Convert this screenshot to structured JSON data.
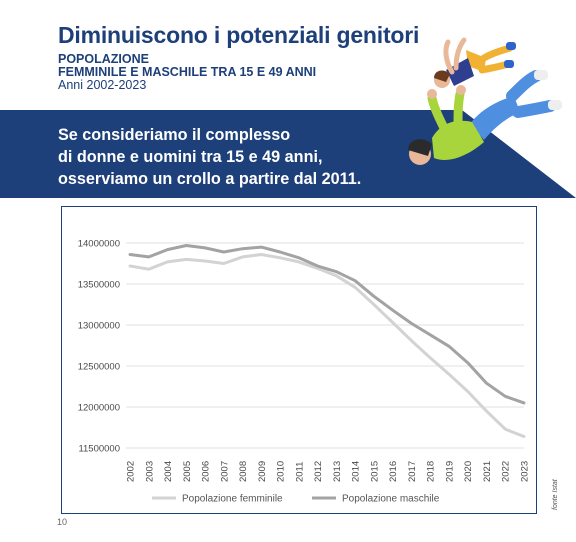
{
  "header": {
    "title": "Diminuiscono i potenziali genitori",
    "subtitle_line1": "POPOLAZIONE",
    "subtitle_line2": "FEMMINILE E MASCHILE TRA 15 E 49 ANNI",
    "years": "Anni 2002-2023"
  },
  "banner": {
    "lines": [
      "Se consideriamo il complesso",
      "di donne e uomini tra 15 e 49 anni,",
      "osserviamo un crollo a partire dal 2011."
    ]
  },
  "colors": {
    "navy": "#1d3f7a",
    "female_line": "#d3d3d3",
    "male_line": "#a3a3a3",
    "grid": "#e2e2e2"
  },
  "chart_data": {
    "type": "line",
    "title": "",
    "xlabel": "",
    "ylabel": "",
    "x": [
      "2002",
      "2003",
      "2004",
      "2005",
      "2006",
      "2007",
      "2008",
      "2009",
      "2010",
      "2011",
      "2012",
      "2013",
      "2014",
      "2015",
      "2016",
      "2017",
      "2018",
      "2019",
      "2020",
      "2021",
      "2022",
      "2023"
    ],
    "ylim": [
      11500000,
      14000000
    ],
    "yticks": [
      11500000,
      12000000,
      12500000,
      13000000,
      13500000,
      14000000
    ],
    "ytick_labels": [
      "11500000",
      "12000000",
      "12500000",
      "13000000",
      "13500000",
      "14000000"
    ],
    "grid": true,
    "legend": "bottom",
    "series": [
      {
        "name": "Popolazione femminile",
        "color": "#d3d3d3",
        "values": [
          13720000,
          13680000,
          13770000,
          13800000,
          13780000,
          13750000,
          13830000,
          13860000,
          13820000,
          13770000,
          13690000,
          13600000,
          13460000,
          13250000,
          13030000,
          12810000,
          12600000,
          12400000,
          12190000,
          11950000,
          11730000,
          11640000
        ]
      },
      {
        "name": "Popolazione maschile",
        "color": "#a3a3a3",
        "values": [
          13860000,
          13830000,
          13920000,
          13970000,
          13940000,
          13890000,
          13930000,
          13950000,
          13890000,
          13820000,
          13720000,
          13650000,
          13540000,
          13350000,
          13180000,
          13020000,
          12880000,
          12740000,
          12540000,
          12290000,
          12130000,
          12050000
        ]
      }
    ]
  },
  "footer": {
    "source": "fonte Istat",
    "page_number": "10"
  }
}
